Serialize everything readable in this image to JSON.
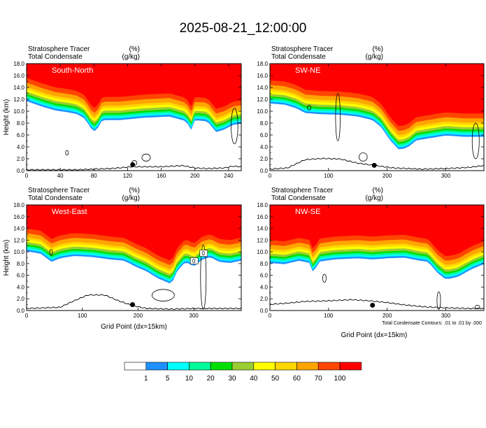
{
  "figure": {
    "title": "2025-08-21_12:00:00",
    "contour_note": "Total Condensate Contours: .01 to .01 by .000"
  },
  "colors": {
    "levels": [
      "#ffffff",
      "#1e90ff",
      "#00ffff",
      "#00fa9a",
      "#00e000",
      "#9acd32",
      "#ffff00",
      "#ffd700",
      "#ffa500",
      "#ff4500",
      "#ff0000"
    ]
  },
  "legend": {
    "labels": [
      "1",
      "5",
      "10",
      "20",
      "30",
      "40",
      "50",
      "60",
      "70",
      "100"
    ]
  },
  "chart_data": [
    {
      "type": "area",
      "panel_label": "South-North",
      "subtitle_1": "Stratosphere Tracer",
      "unit_1": "(%)",
      "subtitle_2": "Total Condensate",
      "unit_2": "(g/kg)",
      "ylabel": "Height (km)",
      "xlabel": "",
      "xlim": [
        0,
        255
      ],
      "ylim": [
        0,
        18
      ],
      "xticks": [
        "0",
        "40",
        "80",
        "120",
        "160",
        "200",
        "240"
      ],
      "xtick_values": [
        0,
        40,
        80,
        120,
        160,
        200,
        240
      ],
      "yticks": [
        "0.0",
        "2.0",
        "4.0",
        "6.0",
        "8.0",
        "10.0",
        "12.0",
        "14.0",
        "16.0",
        "18.0"
      ],
      "tracer_lower_edge_km": [
        [
          0,
          15.6
        ],
        [
          8,
          15.2
        ],
        [
          20,
          14.6
        ],
        [
          35,
          14.0
        ],
        [
          50,
          13.7
        ],
        [
          60,
          13.4
        ],
        [
          70,
          12.6
        ],
        [
          75,
          11.2
        ],
        [
          82,
          10.4
        ],
        [
          90,
          12.4
        ],
        [
          110,
          12.4
        ],
        [
          140,
          12.8
        ],
        [
          170,
          13.0
        ],
        [
          190,
          12.2
        ],
        [
          195,
          10.6
        ],
        [
          200,
          12.4
        ],
        [
          215,
          12.2
        ],
        [
          225,
          10.4
        ],
        [
          235,
          10.8
        ],
        [
          245,
          11.6
        ],
        [
          255,
          11.8
        ]
      ],
      "terrain_km": [
        [
          0,
          0.1
        ],
        [
          60,
          0.1
        ],
        [
          100,
          0.3
        ],
        [
          125,
          0.6
        ],
        [
          160,
          0.6
        ],
        [
          185,
          0.8
        ],
        [
          200,
          0.4
        ],
        [
          215,
          0.3
        ],
        [
          235,
          0.4
        ],
        [
          245,
          0.7
        ],
        [
          255,
          0.6
        ]
      ],
      "cloud_contours": [
        {
          "x": 47,
          "y": 2.6,
          "w": 2,
          "h": 0.8
        },
        {
          "x": 125,
          "y": 0.9,
          "w": 6,
          "h": 0.8
        },
        {
          "x": 137,
          "y": 1.6,
          "w": 10,
          "h": 1.2
        },
        {
          "x": 243,
          "y": 4.5,
          "w": 8,
          "h": 6
        }
      ],
      "marker": {
        "x": 126,
        "y": 1.0
      }
    },
    {
      "type": "area",
      "panel_label": "SW-NE",
      "subtitle_1": "Stratosphere Tracer",
      "unit_1": "(%)",
      "subtitle_2": "Total Condensate",
      "unit_2": "(g/kg)",
      "ylabel": "",
      "xlabel": "",
      "xlim": [
        0,
        365
      ],
      "ylim": [
        0,
        18
      ],
      "xticks": [
        "0",
        "100",
        "200",
        "300"
      ],
      "xtick_values": [
        0,
        100,
        200,
        300
      ],
      "yticks": [
        "0.0",
        "2.0",
        "4.0",
        "6.0",
        "8.0",
        "10.0",
        "12.0",
        "14.0",
        "16.0",
        "18.0"
      ],
      "tracer_lower_edge_km": [
        [
          0,
          15.2
        ],
        [
          25,
          15.0
        ],
        [
          45,
          14.4
        ],
        [
          60,
          13.6
        ],
        [
          85,
          13.4
        ],
        [
          120,
          13.3
        ],
        [
          150,
          13.0
        ],
        [
          175,
          12.4
        ],
        [
          190,
          11.2
        ],
        [
          205,
          9.0
        ],
        [
          220,
          7.4
        ],
        [
          235,
          7.8
        ],
        [
          250,
          9.0
        ],
        [
          275,
          9.4
        ],
        [
          300,
          9.8
        ],
        [
          330,
          9.6
        ],
        [
          365,
          9.6
        ]
      ],
      "terrain_km": [
        [
          0,
          0.2
        ],
        [
          30,
          0.4
        ],
        [
          60,
          1.8
        ],
        [
          90,
          2.0
        ],
        [
          120,
          1.9
        ],
        [
          150,
          1.2
        ],
        [
          180,
          0.8
        ],
        [
          210,
          0.4
        ],
        [
          260,
          0.2
        ],
        [
          300,
          0.3
        ],
        [
          340,
          0.5
        ],
        [
          365,
          0.8
        ]
      ],
      "cloud_contours": [
        {
          "x": 64,
          "y": 10.2,
          "w": 6,
          "h": 0.8
        },
        {
          "x": 112,
          "y": 5.0,
          "w": 8,
          "h": 8
        },
        {
          "x": 152,
          "y": 1.6,
          "w": 14,
          "h": 1.4
        },
        {
          "x": 345,
          "y": 2.0,
          "w": 12,
          "h": 6
        }
      ],
      "marker": {
        "x": 178,
        "y": 0.9
      }
    },
    {
      "type": "area",
      "panel_label": "West-East",
      "subtitle_1": "Stratosphere Tracer",
      "unit_1": "(%)",
      "subtitle_2": "Total Condensate",
      "unit_2": "(g/kg)",
      "ylabel": "Height (km)",
      "xlabel": "Grid Point (dx=15km)",
      "xlim": [
        0,
        385
      ],
      "ylim": [
        0,
        18
      ],
      "xticks": [
        "0",
        "100",
        "200",
        "300"
      ],
      "xtick_values": [
        0,
        100,
        200,
        300
      ],
      "yticks": [
        "0.0",
        "2.0",
        "4.0",
        "6.0",
        "8.0",
        "10.0",
        "12.0",
        "14.0",
        "16.0",
        "18.0"
      ],
      "tracer_lower_edge_km": [
        [
          0,
          14.0
        ],
        [
          25,
          13.6
        ],
        [
          45,
          12.2
        ],
        [
          60,
          12.8
        ],
        [
          85,
          13.2
        ],
        [
          120,
          13.0
        ],
        [
          150,
          12.6
        ],
        [
          175,
          12.4
        ],
        [
          195,
          11.4
        ],
        [
          215,
          10.6
        ],
        [
          235,
          9.4
        ],
        [
          260,
          8.4
        ],
        [
          270,
          10.6
        ],
        [
          285,
          12.2
        ],
        [
          300,
          11.4
        ],
        [
          315,
          12.6
        ],
        [
          330,
          13.0
        ],
        [
          345,
          12.2
        ],
        [
          365,
          12.0
        ],
        [
          385,
          12.4
        ]
      ],
      "terrain_km": [
        [
          0,
          0.3
        ],
        [
          60,
          0.5
        ],
        [
          85,
          1.6
        ],
        [
          110,
          2.6
        ],
        [
          140,
          2.6
        ],
        [
          165,
          1.6
        ],
        [
          190,
          0.8
        ],
        [
          215,
          0.3
        ],
        [
          260,
          0.2
        ],
        [
          300,
          0.3
        ],
        [
          340,
          0.3
        ],
        [
          385,
          0.3
        ]
      ],
      "cloud_contours": [
        {
          "x": 42,
          "y": 9.4,
          "w": 4,
          "h": 1.0
        },
        {
          "x": 225,
          "y": 1.6,
          "w": 40,
          "h": 2.0
        },
        {
          "x": 312,
          "y": 0.2,
          "w": 10,
          "h": 11.0
        }
      ],
      "boxed_labels": [
        "0",
        "0"
      ],
      "marker": {
        "x": 190,
        "y": 1.0
      }
    },
    {
      "type": "area",
      "panel_label": "NW-SE",
      "subtitle_1": "Stratosphere Tracer",
      "unit_1": "(%)",
      "subtitle_2": "Total Condensate",
      "unit_2": "(g/kg)",
      "ylabel": "",
      "xlabel": "Grid Point (dx=15km)",
      "xlim": [
        0,
        365
      ],
      "ylim": [
        0,
        18
      ],
      "xticks": [
        "0",
        "100",
        "200",
        "300"
      ],
      "xtick_values": [
        0,
        100,
        200,
        300
      ],
      "yticks": [
        "0.0",
        "2.0",
        "4.0",
        "6.0",
        "8.0",
        "10.0",
        "12.0",
        "14.0",
        "16.0",
        "18.0"
      ],
      "tracer_lower_edge_km": [
        [
          0,
          12.0
        ],
        [
          25,
          11.8
        ],
        [
          50,
          12.4
        ],
        [
          68,
          12.0
        ],
        [
          75,
          10.0
        ],
        [
          82,
          12.2
        ],
        [
          110,
          12.6
        ],
        [
          150,
          12.8
        ],
        [
          175,
          12.6
        ],
        [
          200,
          12.8
        ],
        [
          230,
          12.9
        ],
        [
          255,
          12.4
        ],
        [
          270,
          12.2
        ],
        [
          285,
          10.4
        ],
        [
          300,
          9.2
        ],
        [
          320,
          9.6
        ],
        [
          345,
          11.0
        ],
        [
          365,
          11.8
        ]
      ],
      "terrain_km": [
        [
          0,
          1.0
        ],
        [
          30,
          1.2
        ],
        [
          60,
          1.5
        ],
        [
          100,
          1.6
        ],
        [
          140,
          1.8
        ],
        [
          170,
          1.6
        ],
        [
          200,
          1.3
        ],
        [
          230,
          0.9
        ],
        [
          260,
          0.6
        ],
        [
          300,
          0.4
        ],
        [
          340,
          0.3
        ],
        [
          365,
          0.3
        ]
      ],
      "cloud_contours": [
        {
          "x": 90,
          "y": 4.8,
          "w": 6,
          "h": 1.4
        },
        {
          "x": 285,
          "y": 0.2,
          "w": 6,
          "h": 3.0
        },
        {
          "x": 350,
          "y": 0.3,
          "w": 8,
          "h": 0.6
        }
      ],
      "marker": {
        "x": 175,
        "y": 0.9
      }
    }
  ]
}
